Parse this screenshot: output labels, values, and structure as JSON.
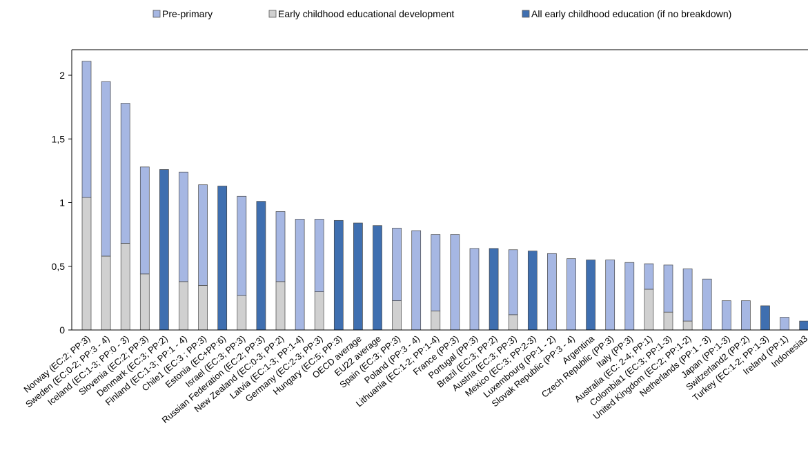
{
  "chart_data": {
    "type": "bar",
    "stacked": true,
    "title": "",
    "xlabel": "",
    "ylabel": "",
    "ylim": [
      0,
      2.2
    ],
    "yticks": [
      0,
      0.5,
      1,
      1.5,
      2
    ],
    "ytick_labels": [
      "0",
      "0,5",
      "1",
      "1,5",
      "2"
    ],
    "grid": false,
    "legend_position": "top",
    "legend": [
      {
        "key": "pre_primary",
        "label": "Pre-primary",
        "color": "#a6b7e3"
      },
      {
        "key": "ecec_dev",
        "label": "Early childhood educational development",
        "color": "#d0d0d0"
      },
      {
        "key": "all_ece",
        "label": "All early childhood education (if no breakdown)",
        "color": "#3f6fb0"
      }
    ],
    "categories": [
      "Norway (EC:2; PP:3)",
      "Sweden (EC:0-2; PP:3 - 4)",
      "Iceland (EC:1-3; PP:0 - 3)",
      "Slovenia (EC:2; PP:3)",
      "Denmark (EC:3; PP:2)",
      "Finland (EC:1-3; PP:1 - 4)",
      "Chile1 (EC:3 ; PP:3)",
      "Estonia (EC+PP:6)",
      "Israel (EC:3; PP:3)",
      "Russian Federation (EC:2; PP:3)",
      "New Zealand (EC:0-3; PP:2)",
      "Latvia (EC:1-3; PP:1-4)",
      "Germany (EC:2-3; PP:3)",
      "Hungary (EC:5; PP:3)",
      "OECD average",
      "EU22 average",
      "Spain (EC:3; PP:3)",
      "Poland (PP:3 - 4)",
      "Lithuania (EC:1-2; PP:1-4)",
      "France (PP:3)",
      "Portugal (PP:3)",
      "Brazil (EC:3; PP:2)",
      "Austria (EC:3; PP:3)",
      "Mexico (EC:3; PP:2-3)",
      "Luxembourg (PP:1 - 2)",
      "Slovak Republic (PP:3 - 4)",
      "Argentina",
      "Czech Republic (PP:3)",
      "Italy (PP:3)",
      "Australia (EC: 2-4; PP:1)",
      "Colombia1 (EC:3; PP:1-3)",
      "United Kingdom (EC:2; PP:1-2)",
      "Netherlands (PP:1 - 3)",
      "Japan (PP:1-3)",
      "Switzerland2 (PP:2)",
      "Turkey (EC:1-2; PP:1-3)",
      "Ireland (PP:1)",
      "Indonesia3"
    ],
    "series": [
      {
        "key": "ecec_dev",
        "values": [
          1.04,
          0.58,
          0.68,
          0.44,
          0,
          0.38,
          0.35,
          0,
          0.27,
          0,
          0.38,
          0,
          0.3,
          0,
          0,
          0,
          0.23,
          0,
          0.15,
          0,
          0,
          0,
          0.12,
          0,
          0,
          0,
          0,
          0,
          0,
          0.32,
          0.14,
          0.07,
          0,
          0,
          0,
          0,
          0,
          0
        ]
      },
      {
        "key": "pre_primary",
        "values": [
          1.07,
          1.37,
          1.1,
          0.84,
          0,
          0.86,
          0.79,
          0,
          0.78,
          0,
          0.55,
          0.87,
          0.57,
          0,
          0,
          0,
          0.57,
          0.78,
          0.6,
          0.75,
          0.64,
          0,
          0.51,
          0,
          0.6,
          0.56,
          0,
          0.55,
          0.53,
          0.2,
          0.37,
          0.41,
          0.4,
          0.23,
          0.23,
          0,
          0.1,
          0
        ]
      },
      {
        "key": "all_ece",
        "values": [
          0,
          0,
          0,
          0,
          1.26,
          0,
          0,
          1.13,
          0,
          1.01,
          0,
          0,
          0,
          0.86,
          0.84,
          0.82,
          0,
          0,
          0,
          0,
          0,
          0.64,
          0,
          0.62,
          0,
          0,
          0.55,
          0,
          0,
          0,
          0,
          0,
          0,
          0,
          0,
          0.19,
          0,
          0.07
        ]
      }
    ]
  }
}
